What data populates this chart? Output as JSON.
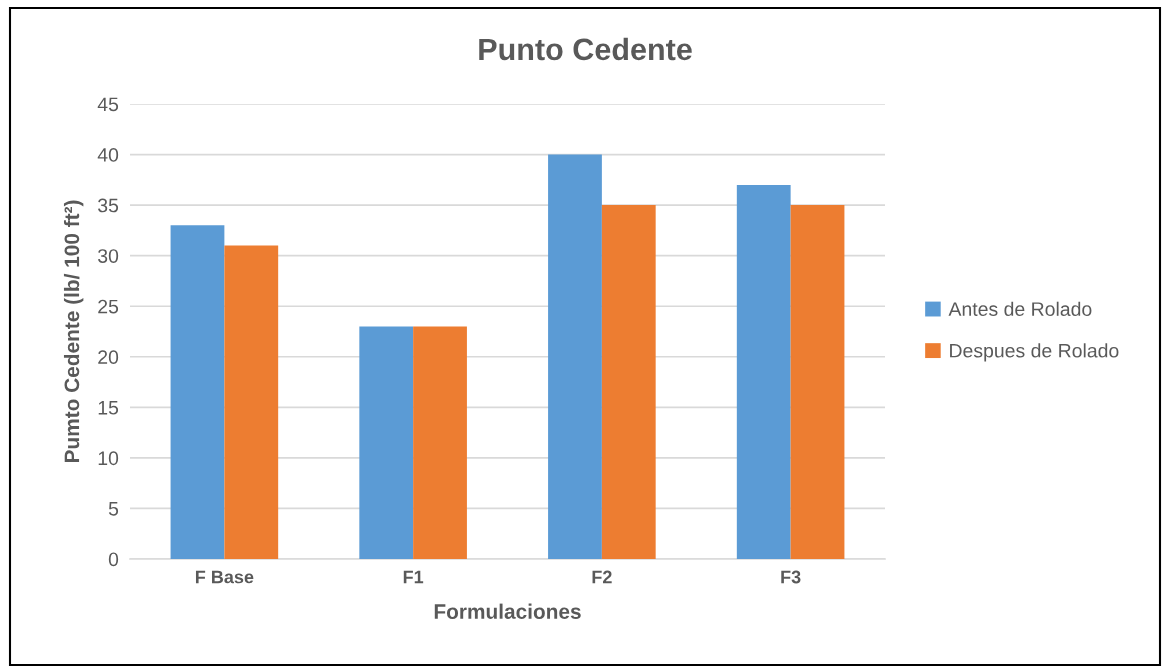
{
  "chart_data": {
    "type": "bar",
    "title": "Punto Cedente",
    "xlabel": "Formulaciones",
    "ylabel": "Pumto Cedente (lb/ 100 ft²)",
    "categories": [
      "F Base",
      "F1",
      "F2",
      "F3"
    ],
    "series": [
      {
        "name": "Antes de Rolado",
        "color": "#5b9bd5",
        "values": [
          33,
          23,
          40,
          37
        ]
      },
      {
        "name": "Despues de Rolado",
        "color": "#ed7d31",
        "values": [
          31,
          23,
          35,
          35
        ]
      }
    ],
    "ylim": [
      0,
      45
    ],
    "yticks": [
      0,
      5,
      10,
      15,
      20,
      25,
      30,
      35,
      40,
      45
    ],
    "grid": "y",
    "legend": "right"
  }
}
